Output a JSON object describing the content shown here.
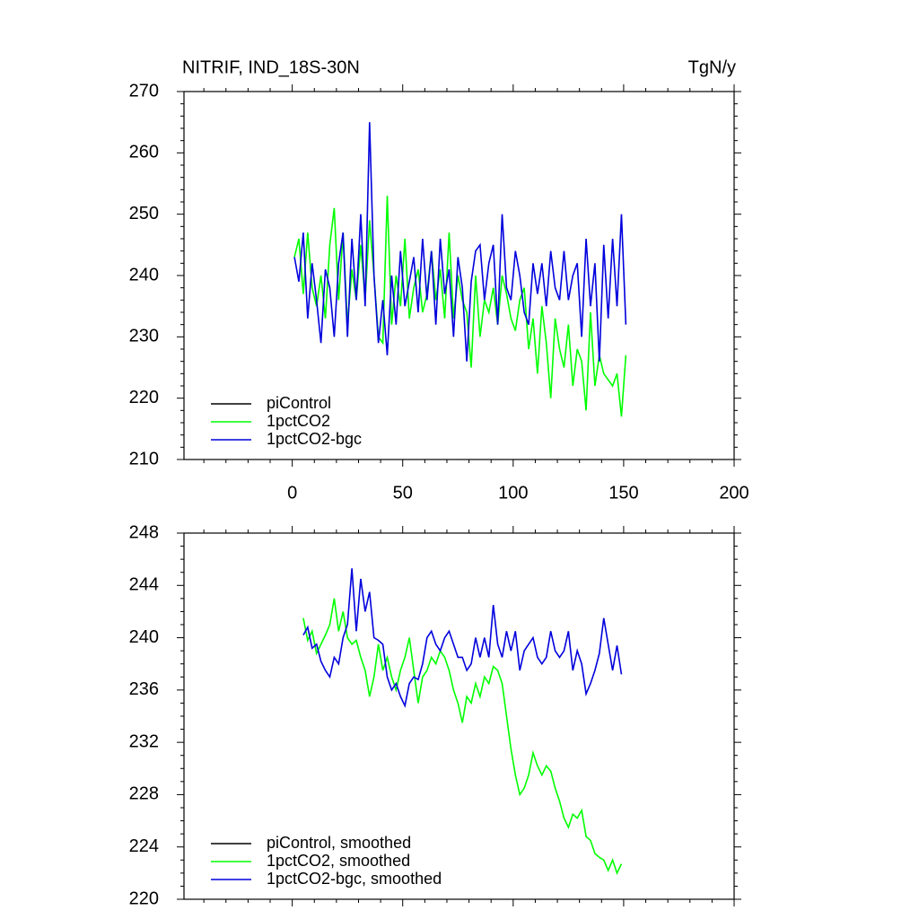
{
  "chart_data": [
    {
      "type": "line",
      "title": "NITRIF, IND_18S-30N",
      "units": "TgN/y",
      "x": [
        1,
        3,
        5,
        7,
        9,
        11,
        13,
        15,
        17,
        19,
        21,
        23,
        25,
        27,
        29,
        31,
        33,
        35,
        37,
        39,
        41,
        43,
        45,
        47,
        49,
        51,
        53,
        55,
        57,
        59,
        61,
        63,
        65,
        67,
        69,
        71,
        73,
        75,
        77,
        79,
        81,
        83,
        85,
        87,
        89,
        91,
        93,
        95,
        97,
        99,
        101,
        103,
        105,
        107,
        109,
        111,
        113,
        115,
        117,
        119,
        121,
        123,
        125,
        127,
        129,
        131,
        133,
        135,
        137,
        139,
        141,
        143,
        145,
        147,
        149,
        151
      ],
      "series": [
        {
          "name": "piControl",
          "color": "#000000",
          "values": [
            null,
            null,
            null,
            null,
            null,
            null,
            null,
            null,
            null,
            null,
            null,
            null,
            null,
            null,
            null,
            null,
            null,
            null,
            null,
            null,
            null,
            null,
            null,
            null,
            null,
            null,
            null,
            null,
            null,
            null,
            null,
            null,
            null,
            null,
            null,
            null,
            null,
            null,
            null,
            null,
            null,
            null,
            null,
            null,
            null,
            null,
            null,
            null,
            null,
            null,
            null,
            null,
            null,
            null,
            null,
            null,
            null,
            null,
            null,
            null,
            null,
            null,
            null,
            null,
            null,
            null,
            null,
            null,
            null,
            null,
            null,
            null,
            null,
            null,
            null,
            null
          ]
        },
        {
          "name": "1pctCO2",
          "color": "#00ff00",
          "values": [
            243,
            246,
            237,
            247,
            238,
            235,
            240,
            233,
            245,
            251,
            236,
            247,
            232,
            241,
            236,
            245,
            236,
            249,
            240,
            230,
            229,
            253,
            232,
            240,
            235,
            246,
            233,
            238,
            241,
            234,
            237,
            244,
            236,
            241,
            233,
            247,
            233,
            240,
            236,
            234,
            225,
            240,
            230,
            236,
            234,
            238,
            232,
            240,
            237,
            233,
            231,
            236,
            238,
            228,
            233,
            224,
            235,
            229,
            220,
            233,
            228,
            225,
            232,
            222,
            228,
            226,
            218,
            234,
            222,
            227,
            224,
            223,
            222,
            224,
            217,
            227
          ]
        },
        {
          "name": "1pctCO2-bgc",
          "color": "#0000dd",
          "values": [
            243,
            239,
            247,
            233,
            242,
            236,
            229,
            241,
            238,
            230,
            242,
            247,
            230,
            246,
            236,
            250,
            235,
            265,
            240,
            229,
            236,
            227,
            240,
            232,
            244,
            235,
            239,
            243,
            234,
            246,
            236,
            244,
            232,
            246,
            237,
            241,
            230,
            243,
            238,
            226,
            239,
            244,
            245,
            236,
            242,
            245,
            232,
            250,
            238,
            236,
            244,
            240,
            234,
            232,
            242,
            237,
            242,
            235,
            244,
            238,
            236,
            244,
            236,
            240,
            242,
            230,
            246,
            235,
            242,
            226,
            245,
            233,
            246,
            235,
            250,
            232
          ]
        }
      ],
      "xlim": [
        -49,
        200
      ],
      "xticks": [
        0,
        50,
        100,
        150,
        200
      ],
      "ylim": [
        210,
        270
      ],
      "yticks": [
        210,
        220,
        230,
        240,
        250,
        260,
        270
      ],
      "legend": "lower left"
    },
    {
      "type": "line",
      "x": [
        5,
        7,
        9,
        11,
        13,
        15,
        17,
        19,
        21,
        23,
        25,
        27,
        29,
        31,
        33,
        35,
        37,
        39,
        41,
        43,
        45,
        47,
        49,
        51,
        53,
        55,
        57,
        59,
        61,
        63,
        65,
        67,
        69,
        71,
        73,
        75,
        77,
        79,
        81,
        83,
        85,
        87,
        89,
        91,
        93,
        95,
        97,
        99,
        101,
        103,
        105,
        107,
        109,
        111,
        113,
        115,
        117,
        119,
        121,
        123,
        125,
        127,
        129,
        131,
        133,
        135,
        137,
        139,
        141,
        143,
        145,
        147,
        149
      ],
      "series": [
        {
          "name": "piControl, smoothed",
          "color": "#000000",
          "values": [
            null,
            null,
            null,
            null,
            null,
            null,
            null,
            null,
            null,
            null,
            null,
            null,
            null,
            null,
            null,
            null,
            null,
            null,
            null,
            null,
            null,
            null,
            null,
            null,
            null,
            null,
            null,
            null,
            null,
            null,
            null,
            null,
            null,
            null,
            null,
            null,
            null,
            null,
            null,
            null,
            null,
            null,
            null,
            null,
            null,
            null,
            null,
            null,
            null,
            null,
            null,
            null,
            null,
            null,
            null,
            null,
            null,
            null,
            null,
            null,
            null,
            null,
            null,
            null,
            null,
            null,
            null,
            null,
            null,
            null,
            null,
            null,
            null
          ]
        },
        {
          "name": "1pctCO2, smoothed",
          "color": "#00ff00",
          "values": [
            241.5,
            239.8,
            240.5,
            238.8,
            239.5,
            240.2,
            241,
            243,
            240.5,
            242,
            240,
            239.5,
            239.8,
            238.5,
            237.5,
            235.5,
            237,
            239.5,
            237.5,
            238.5,
            237,
            236,
            237.5,
            238.5,
            240,
            237.5,
            235,
            237,
            237.5,
            238.5,
            238,
            239,
            238.5,
            237.5,
            236,
            235,
            233.5,
            235.5,
            235,
            236.5,
            235.5,
            237,
            236.5,
            237.8,
            237.5,
            236.5,
            234,
            231.5,
            229.5,
            228,
            228.5,
            229.5,
            231.2,
            230.2,
            229.5,
            230.2,
            229.8,
            228.5,
            227.5,
            226.2,
            225.5,
            226.5,
            226.2,
            226.8,
            224.8,
            224.5,
            223.5,
            223.2,
            223,
            222.2,
            223,
            222,
            222.7
          ]
        },
        {
          "name": "1pctCO2-bgc, smoothed",
          "color": "#0000dd",
          "values": [
            240.2,
            240.8,
            239.2,
            239.5,
            238.2,
            237.5,
            237,
            238.5,
            238,
            240,
            241,
            245.3,
            240.5,
            244.5,
            242,
            243.5,
            240,
            239.8,
            239.5,
            237,
            236,
            236.5,
            235.5,
            234.8,
            236.5,
            237,
            236.8,
            238,
            240,
            240.5,
            239.5,
            239,
            240,
            240.5,
            239.5,
            238.5,
            238.5,
            237.5,
            238,
            240,
            238.5,
            240,
            238.5,
            242.5,
            239.5,
            238.5,
            240.5,
            239,
            240.5,
            237.5,
            239,
            239.5,
            240,
            238.5,
            238,
            238.5,
            240.5,
            239,
            238.5,
            239,
            240.5,
            237.5,
            239,
            238,
            235.7,
            236.5,
            237.5,
            238.8,
            241.5,
            239.5,
            237.5,
            239.4,
            237.2
          ]
        }
      ],
      "xlim": [
        -49,
        200
      ],
      "xticks": [
        0,
        50,
        100,
        150,
        200
      ],
      "ylim": [
        220,
        248
      ],
      "yticks": [
        220,
        224,
        228,
        232,
        236,
        240,
        244,
        248
      ],
      "legend": "lower left"
    }
  ]
}
